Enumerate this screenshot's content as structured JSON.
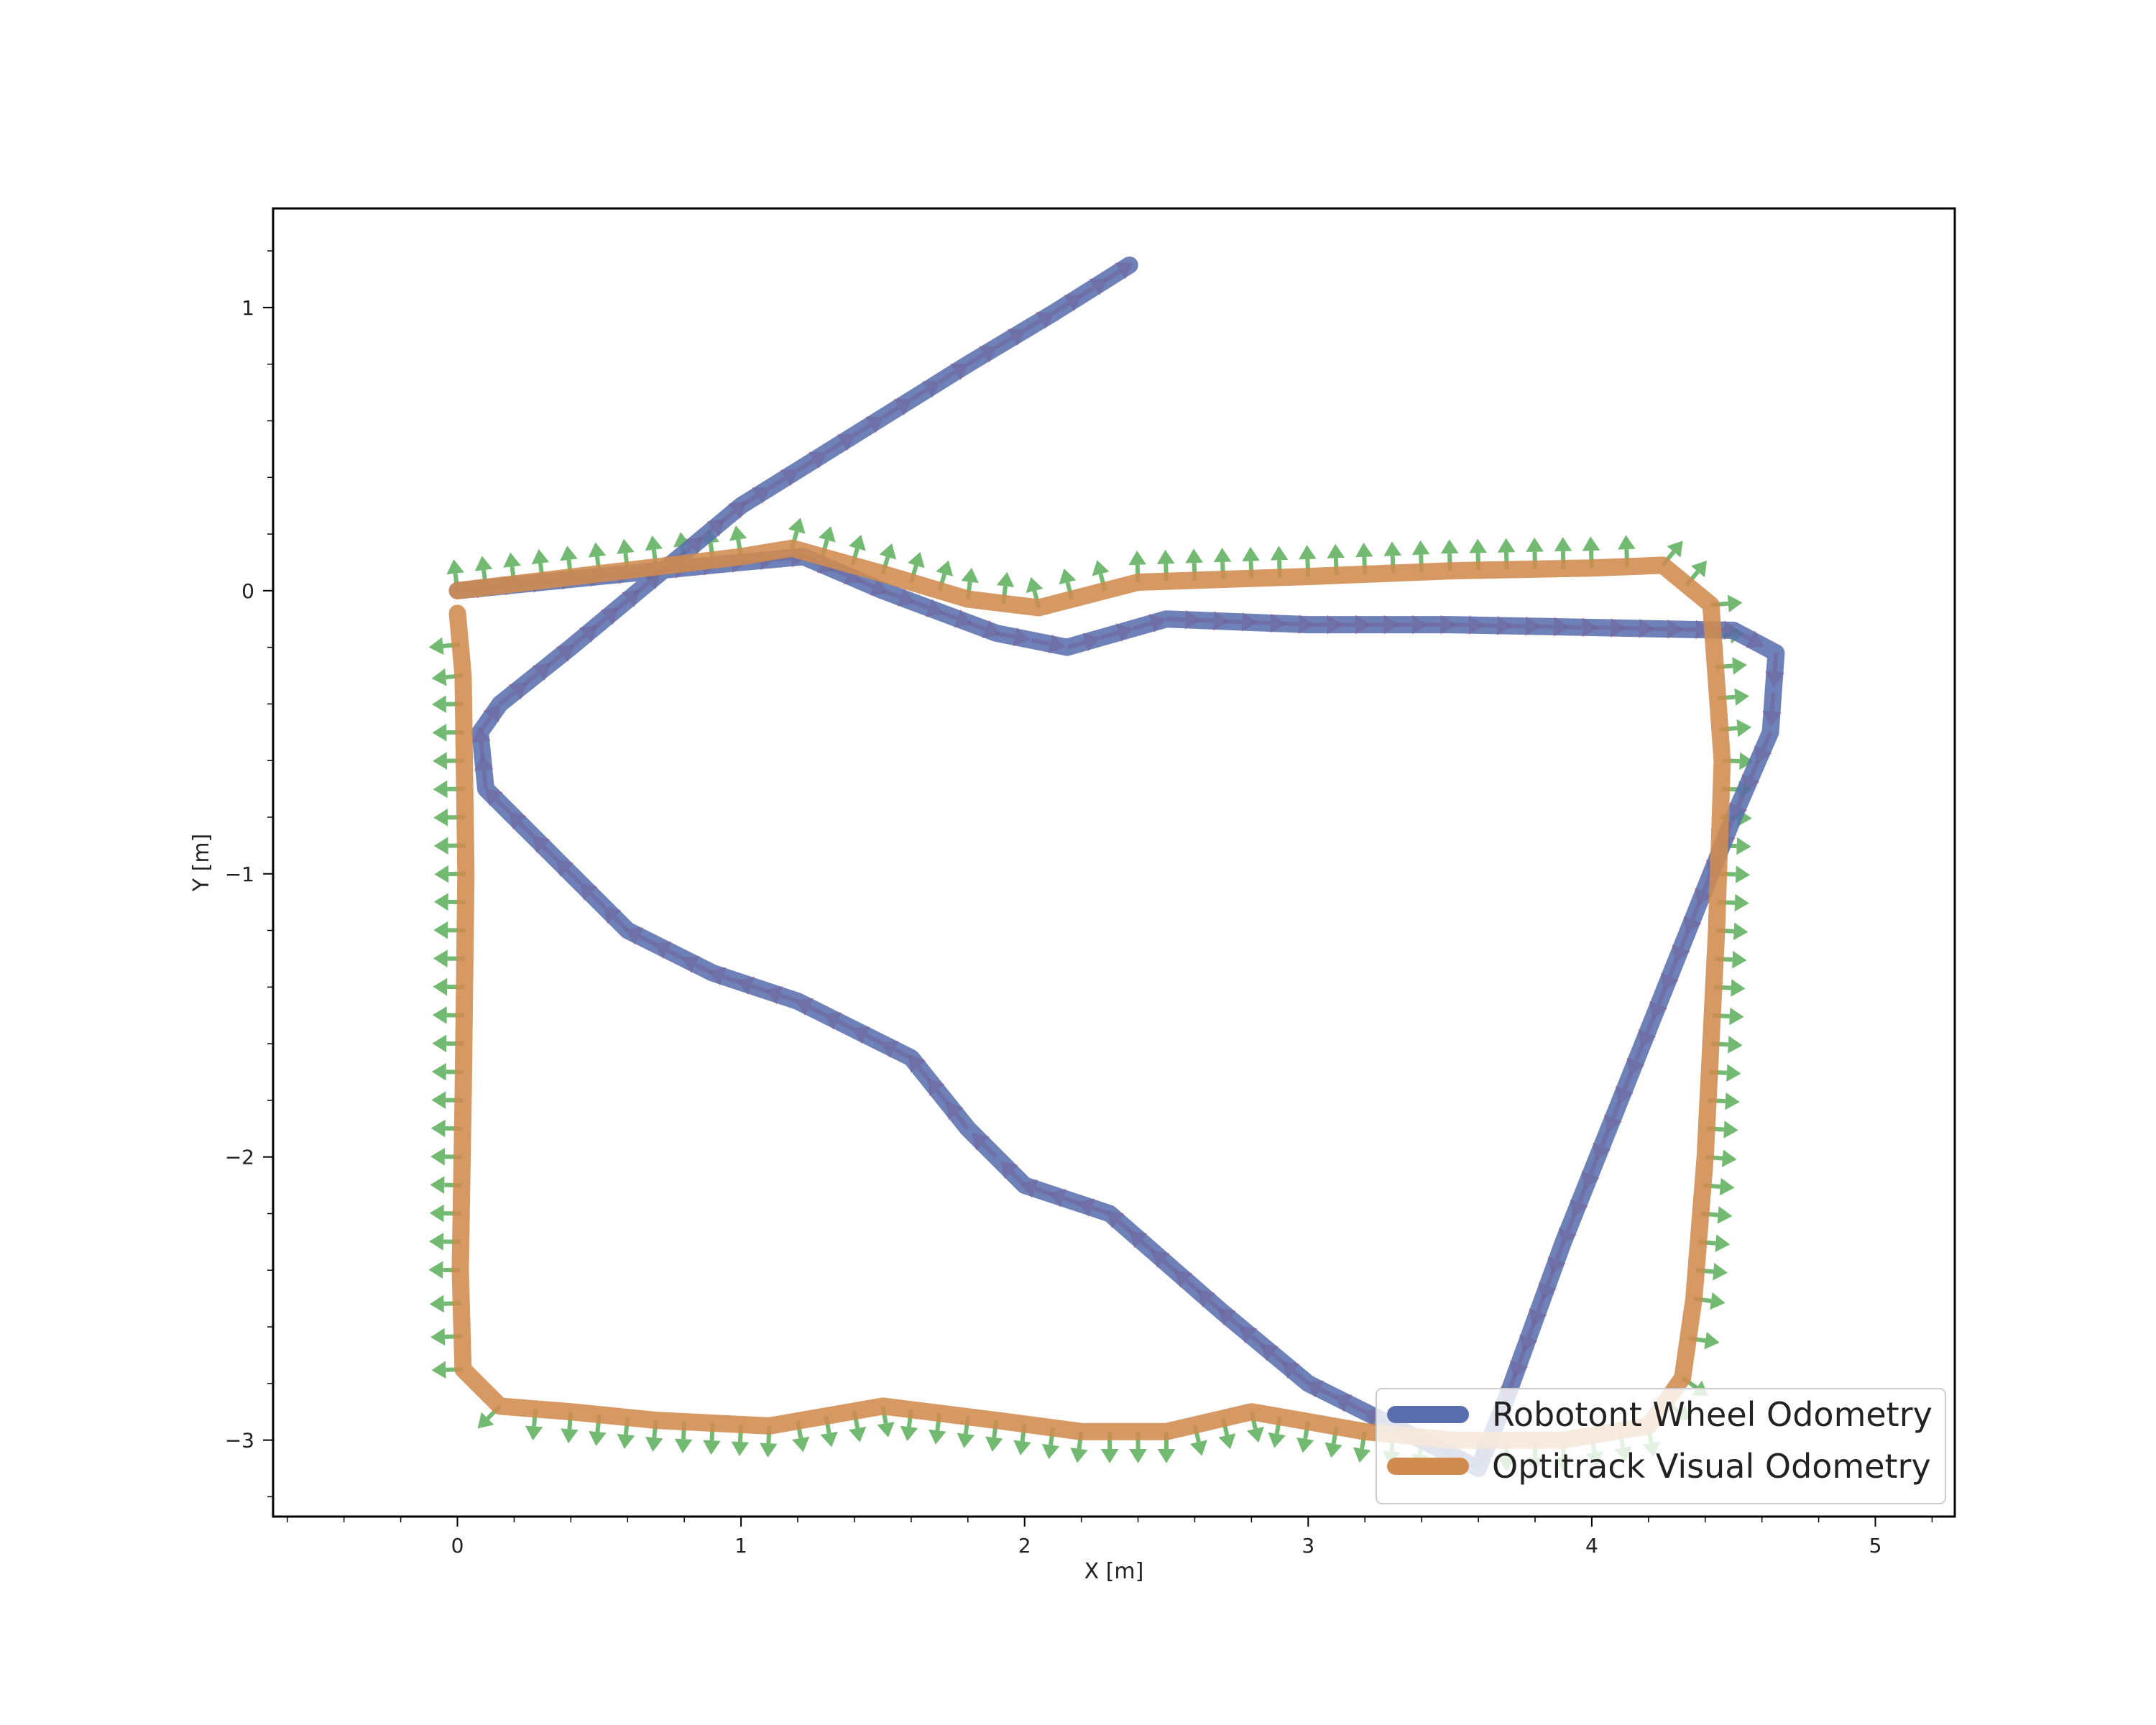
{
  "chart_data": {
    "type": "line",
    "title": "",
    "xlabel": "X [m]",
    "ylabel": "Y [m]",
    "xlim": [
      -0.65,
      5.28
    ],
    "ylim": [
      -3.27,
      1.35
    ],
    "xticks": [
      0,
      1,
      2,
      3,
      4,
      5
    ],
    "yticks": [
      1,
      0,
      -1,
      -2,
      -3
    ],
    "xtick_labels": [
      "0",
      "1",
      "2",
      "3",
      "4",
      "5"
    ],
    "ytick_labels": [
      "1",
      "0",
      "−1",
      "−2",
      "−3"
    ],
    "legend_position": "lower-right",
    "grid": false,
    "orientation_arrows": {
      "shown": true,
      "x_axis_color": "#ff0000",
      "y_axis_color": "#008000"
    },
    "series": [
      {
        "name": "Robotont Wheel Odometry",
        "color": "#5a6fae",
        "x": [
          0.0,
          0.5,
          1.0,
          1.22,
          1.5,
          1.9,
          2.15,
          2.5,
          3.0,
          3.5,
          4.0,
          4.5,
          4.65,
          4.63,
          4.5,
          4.3,
          4.1,
          3.9,
          3.7,
          3.6,
          3.3,
          3.0,
          2.7,
          2.3,
          2.0,
          1.8,
          1.6,
          1.2,
          0.9,
          0.6,
          0.35,
          0.1,
          0.08,
          0.15,
          0.4,
          0.7,
          1.0,
          1.4,
          1.8,
          2.1,
          2.37
        ],
        "y": [
          0.0,
          0.05,
          0.1,
          0.12,
          0.0,
          -0.15,
          -0.2,
          -0.1,
          -0.12,
          -0.12,
          -0.13,
          -0.14,
          -0.22,
          -0.5,
          -0.8,
          -1.3,
          -1.8,
          -2.3,
          -2.85,
          -3.1,
          -2.95,
          -2.8,
          -2.55,
          -2.2,
          -2.1,
          -1.9,
          -1.65,
          -1.45,
          -1.35,
          -1.2,
          -0.95,
          -0.7,
          -0.5,
          -0.4,
          -0.2,
          0.05,
          0.3,
          0.55,
          0.8,
          0.98,
          1.15
        ]
      },
      {
        "name": "Optitrack Visual Odometry",
        "color": "#d08b4e",
        "x": [
          0.0,
          0.5,
          1.0,
          1.18,
          1.5,
          1.8,
          2.05,
          2.4,
          3.0,
          3.5,
          4.0,
          4.25,
          4.42,
          4.46,
          4.44,
          4.4,
          4.36,
          4.32,
          4.2,
          3.9,
          3.5,
          3.2,
          2.8,
          2.5,
          2.2,
          1.9,
          1.5,
          1.1,
          0.7,
          0.4,
          0.15,
          0.02,
          0.01,
          0.02,
          0.03,
          0.02,
          0.0
        ],
        "y": [
          0.0,
          0.06,
          0.12,
          0.15,
          0.06,
          -0.03,
          -0.06,
          0.03,
          0.05,
          0.07,
          0.08,
          0.09,
          -0.05,
          -0.6,
          -1.2,
          -2.0,
          -2.5,
          -2.78,
          -2.95,
          -3.0,
          -3.0,
          -2.97,
          -2.9,
          -2.97,
          -2.97,
          -2.93,
          -2.88,
          -2.95,
          -2.93,
          -2.9,
          -2.88,
          -2.75,
          -2.4,
          -1.8,
          -1.0,
          -0.3,
          -0.08
        ]
      }
    ]
  }
}
